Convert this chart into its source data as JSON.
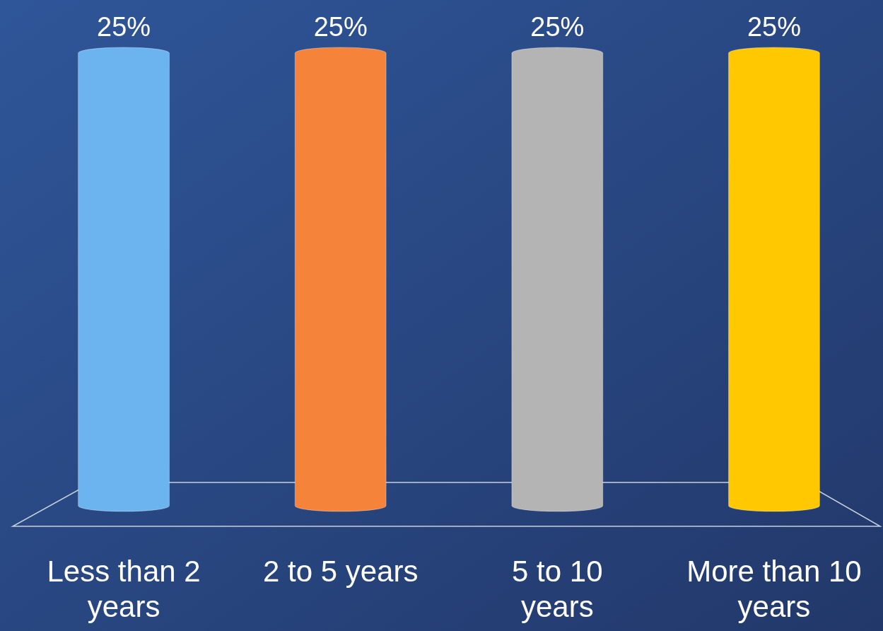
{
  "chart_data": {
    "type": "bar",
    "categories": [
      "Less than 2 years",
      "2 to 5 years",
      "5 to 10 years",
      "More than 10 years"
    ],
    "values": [
      25,
      25,
      25,
      25
    ],
    "colors": [
      "#6cb4f0",
      "#f5843a",
      "#b4b4b4",
      "#ffc800"
    ],
    "value_labels": [
      "25%",
      "25%",
      "25%",
      "25%"
    ]
  }
}
